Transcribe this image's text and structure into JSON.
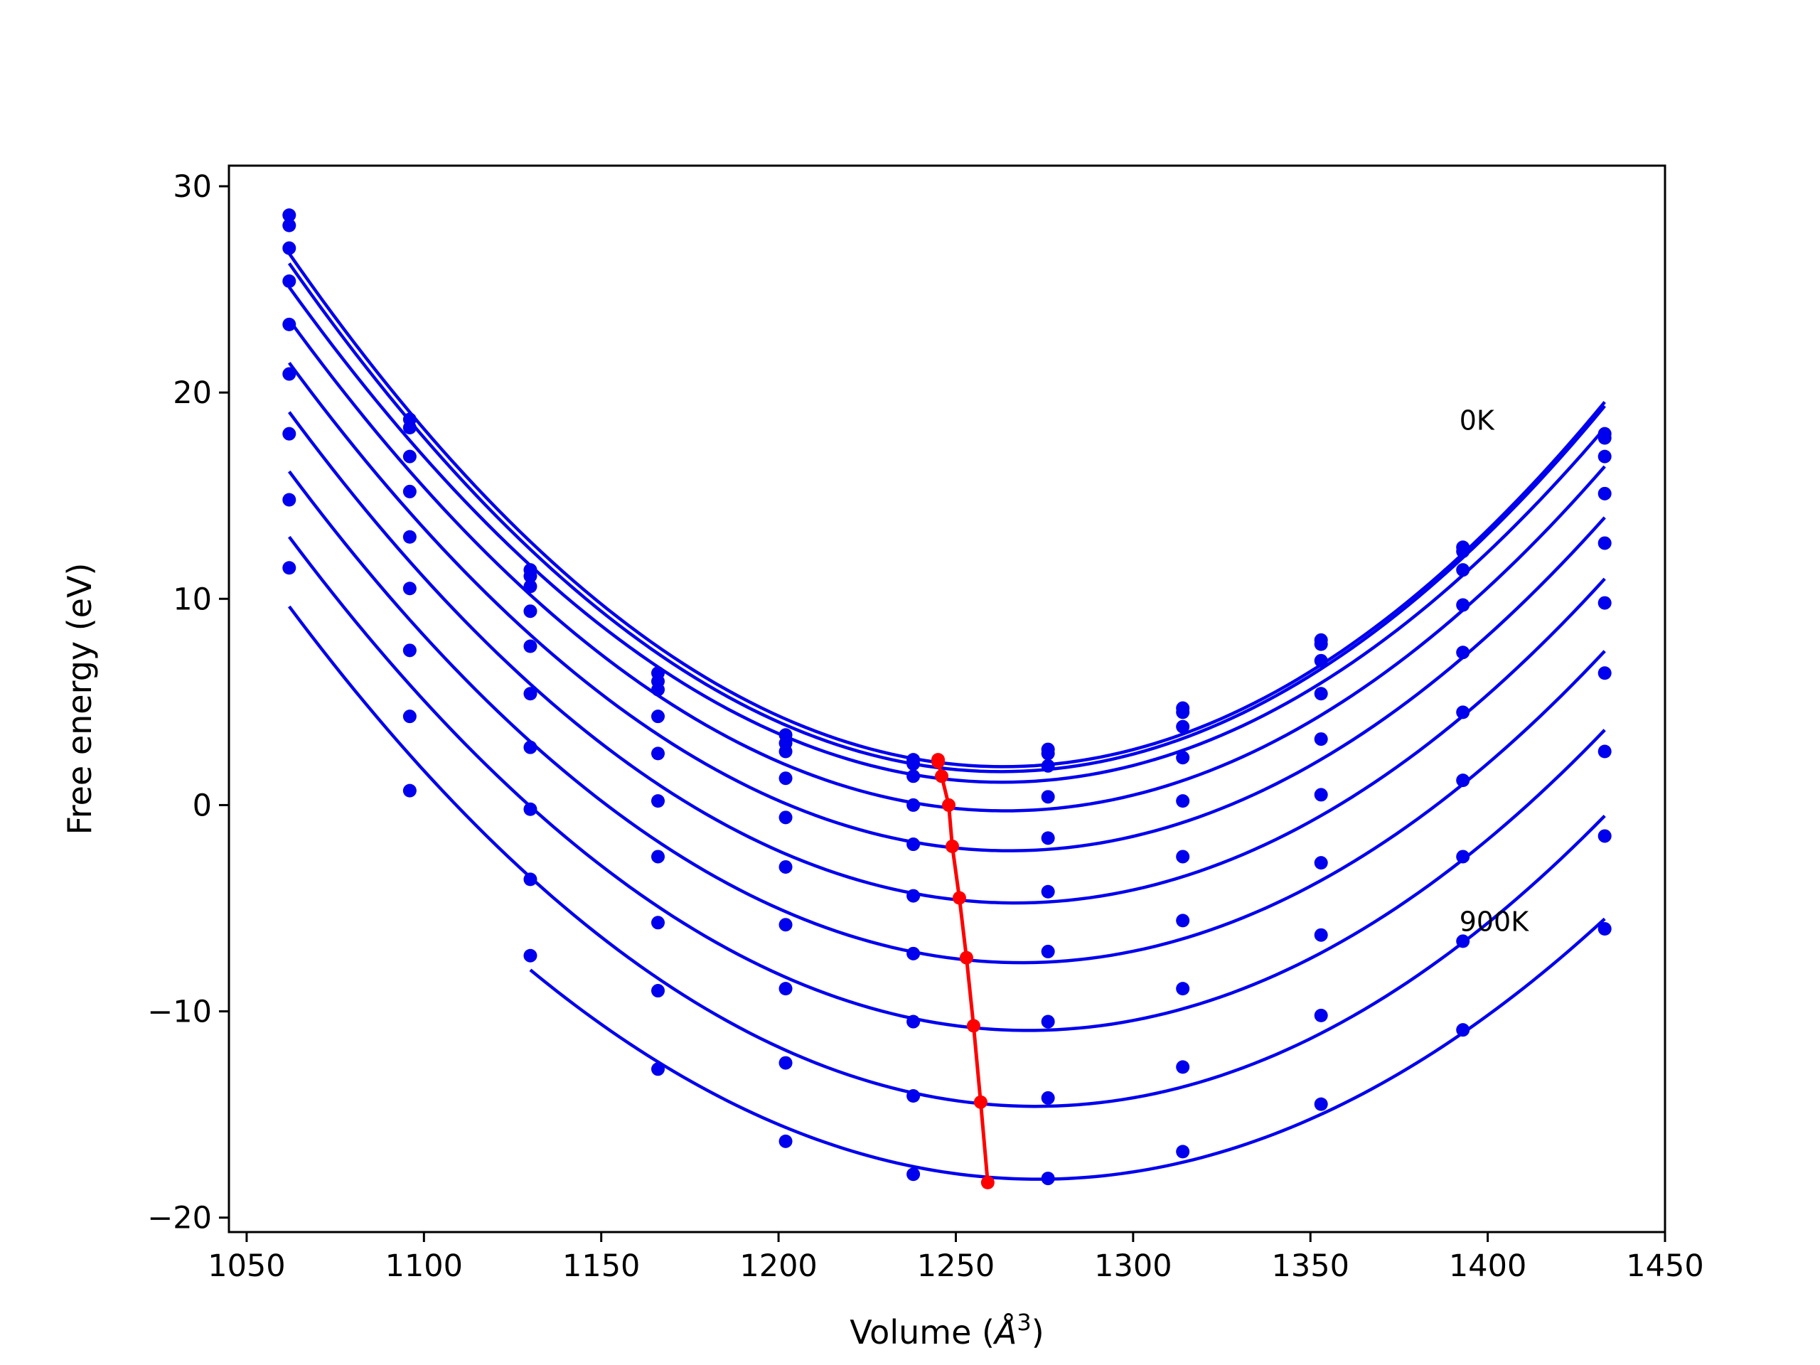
{
  "chart_data": {
    "type": "line",
    "title": "",
    "xlabel_prefix": "Volume (",
    "xlabel_symbol": "Å",
    "xlabel_exponent": "3",
    "xlabel_suffix": ")",
    "ylabel": "Free energy (eV)",
    "xlim": [
      1045,
      1450
    ],
    "ylim": [
      -20.7,
      31
    ],
    "xticks": [
      1050,
      1100,
      1150,
      1200,
      1250,
      1300,
      1350,
      1400,
      1450
    ],
    "yticks": [
      -20,
      -10,
      0,
      10,
      20,
      30
    ],
    "ytick_labels": [
      "−20",
      "−10",
      "0",
      "10",
      "20",
      "30"
    ],
    "grid": false,
    "legend": "none",
    "x": [
      1062,
      1096,
      1130,
      1166,
      1202,
      1238,
      1276,
      1314,
      1353,
      1393,
      1433
    ],
    "curve_color": "#0000ee",
    "min_color": "#ff0000",
    "series": [
      {
        "values": [
          28.6,
          18.7,
          11.4,
          6.4,
          3.4,
          2.2,
          2.7,
          4.7,
          8.0,
          12.5,
          18.0
        ],
        "min": [
          1245,
          2.2
        ]
      },
      {
        "values": [
          28.1,
          18.3,
          11.1,
          6.0,
          3.0,
          2.0,
          2.5,
          4.5,
          7.8,
          12.3,
          17.8
        ],
        "min": [
          1245,
          2.1
        ]
      },
      {
        "values": [
          27.0,
          16.9,
          10.6,
          5.6,
          2.6,
          1.4,
          1.9,
          3.8,
          7.0,
          11.4,
          16.9
        ],
        "min": [
          1246,
          1.4
        ]
      },
      {
        "values": [
          25.4,
          15.2,
          9.4,
          4.3,
          1.3,
          0.0,
          0.4,
          2.3,
          5.4,
          9.7,
          15.1
        ],
        "min": [
          1248,
          0.0
        ]
      },
      {
        "values": [
          23.3,
          13.0,
          7.7,
          2.5,
          -0.6,
          -1.9,
          -1.6,
          0.2,
          3.2,
          7.4,
          12.7
        ],
        "min": [
          1249,
          -2.0
        ]
      },
      {
        "values": [
          20.9,
          10.5,
          5.4,
          0.2,
          -3.0,
          -4.4,
          -4.2,
          -2.5,
          0.5,
          4.5,
          9.8
        ],
        "min": [
          1251,
          -4.5
        ]
      },
      {
        "values": [
          18.0,
          7.5,
          2.8,
          -2.5,
          -5.8,
          -7.2,
          -7.1,
          -5.6,
          -2.8,
          1.2,
          6.4
        ],
        "min": [
          1253,
          -7.4
        ]
      },
      {
        "values": [
          14.8,
          4.3,
          -0.2,
          -5.7,
          -8.9,
          -10.5,
          -10.5,
          -8.9,
          -6.3,
          -2.5,
          2.6
        ],
        "min": [
          1255,
          -10.7
        ]
      },
      {
        "values": [
          11.5,
          0.7,
          -3.6,
          -9.0,
          -12.5,
          -14.1,
          -14.2,
          -12.7,
          -10.2,
          -6.6,
          -1.5
        ],
        "min": [
          1257,
          -14.4
        ]
      },
      {
        "values": [
          null,
          null,
          -7.3,
          -12.8,
          -16.3,
          -17.9,
          -18.1,
          -16.8,
          -14.5,
          -10.9,
          -6.0
        ],
        "min": [
          1259,
          -18.3
        ]
      }
    ],
    "annotations": [
      {
        "text": "0K",
        "x": 1392,
        "y": 18.2
      },
      {
        "text": "900K",
        "x": 1392,
        "y": -6.1
      }
    ]
  }
}
